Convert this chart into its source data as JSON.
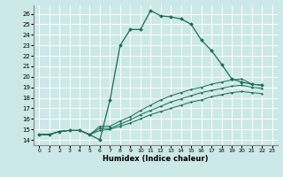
{
  "title": "",
  "xlabel": "Humidex (Indice chaleur)",
  "background_color": "#cce8e8",
  "grid_color": "#ffffff",
  "line_color": "#1a6b5a",
  "xlim": [
    -0.5,
    23.5
  ],
  "ylim": [
    13.5,
    26.8
  ],
  "xticks": [
    0,
    1,
    2,
    3,
    4,
    5,
    6,
    7,
    8,
    9,
    10,
    11,
    12,
    13,
    14,
    15,
    16,
    17,
    18,
    19,
    20,
    21,
    22,
    23
  ],
  "yticks": [
    14,
    15,
    16,
    17,
    18,
    19,
    20,
    21,
    22,
    23,
    24,
    25,
    26
  ],
  "series": [
    [
      14.5,
      14.5,
      14.8,
      14.9,
      14.9,
      14.5,
      14.0,
      17.8,
      23.0,
      24.5,
      24.5,
      26.3,
      25.8,
      25.7,
      25.5,
      25.0,
      23.5,
      22.5,
      21.2,
      19.8,
      19.5,
      19.3,
      19.2
    ],
    [
      14.5,
      14.5,
      14.8,
      14.9,
      14.9,
      14.5,
      15.3,
      15.3,
      15.8,
      16.2,
      16.8,
      17.3,
      17.8,
      18.2,
      18.5,
      18.8,
      19.0,
      19.3,
      19.5,
      19.7,
      19.8,
      19.3,
      19.2
    ],
    [
      14.5,
      14.5,
      14.8,
      14.9,
      14.9,
      14.5,
      15.1,
      15.1,
      15.5,
      15.9,
      16.4,
      16.8,
      17.2,
      17.6,
      17.9,
      18.2,
      18.5,
      18.7,
      18.9,
      19.1,
      19.2,
      19.0,
      18.9
    ],
    [
      14.5,
      14.5,
      14.8,
      14.9,
      14.9,
      14.5,
      14.9,
      15.0,
      15.3,
      15.6,
      16.0,
      16.4,
      16.7,
      17.0,
      17.3,
      17.6,
      17.8,
      18.1,
      18.3,
      18.5,
      18.6,
      18.5,
      18.4
    ]
  ]
}
